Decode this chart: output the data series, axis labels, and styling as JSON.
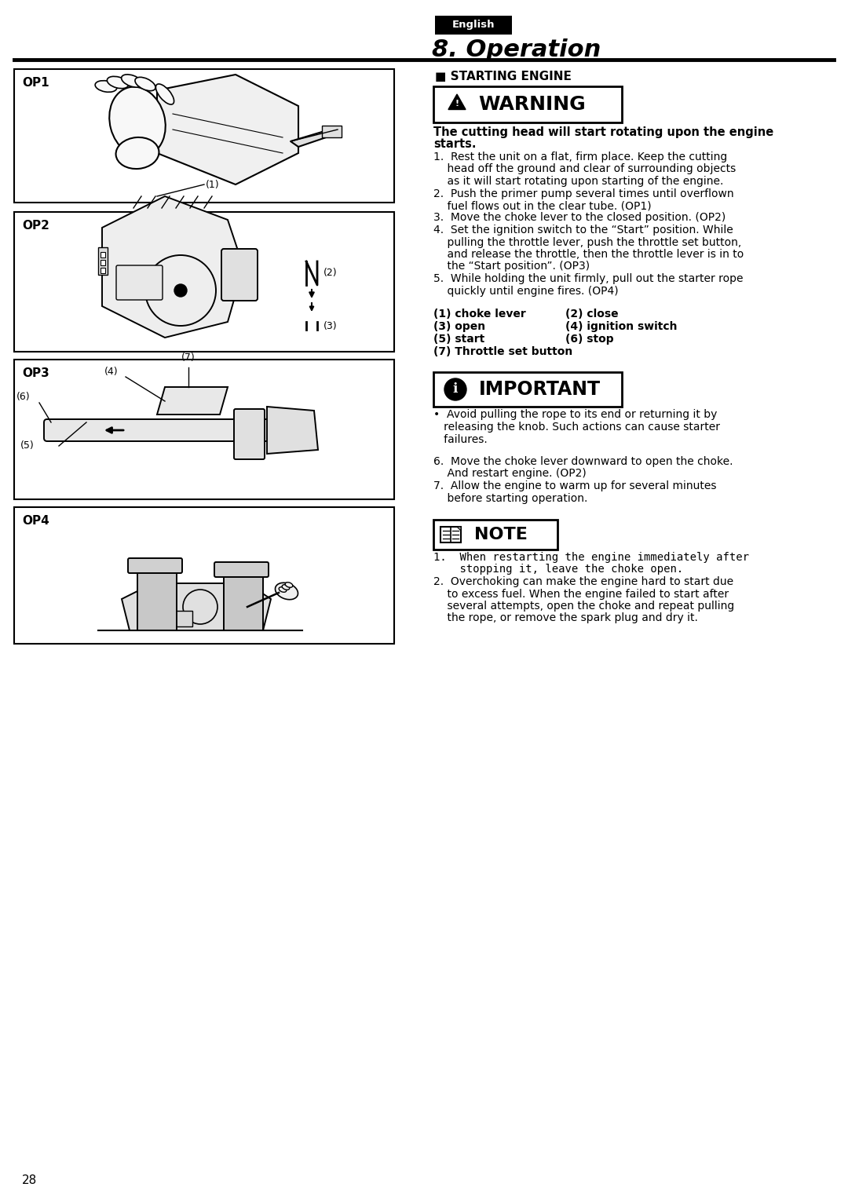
{
  "bg_color": "#ffffff",
  "page_number": "28",
  "english_label": "English",
  "section_title": "8. Operation",
  "section_label": "STARTING ENGINE",
  "warning_text": "WARNING",
  "important_text": "IMPORTANT",
  "note_text": "NOTE",
  "op_labels": [
    "OP1",
    "OP2",
    "OP3",
    "OP4"
  ],
  "warning_body_line1": "The cutting head will start rotating upon the engine",
  "warning_body_line2": "starts.",
  "legend_col1": [
    "(1) choke lever",
    "(3) open",
    "(5) start",
    "(7) Throttle set button"
  ],
  "legend_col2": [
    "(2) close",
    "(4) ignition switch",
    "(6) stop",
    ""
  ],
  "step1a": "1.  Rest the unit on a flat, firm place. Keep the cutting",
  "step1b": "    head off the ground and clear of surrounding objects",
  "step1c": "    as it will start rotating upon starting of the engine.",
  "step2a": "2.  Push the primer pump several times until overflown",
  "step2b": "    fuel flows out in the clear tube. (OP1)",
  "step3": "3.  Move the choke lever to the closed position. (OP2)",
  "step4a": "4.  Set the ignition switch to the “Start” position. While",
  "step4b": "    pulling the throttle lever, push the throttle set button,",
  "step4c": "    and release the throttle, then the throttle lever is in to",
  "step4d": "    the “Start position”. (OP3)",
  "step5a": "5.  While holding the unit firmly, pull out the starter rope",
  "step5b": "    quickly until engine fires. (OP4)",
  "important_bullet": "•  Avoid pulling the rope to its end or returning it by",
  "important_line2": "   releasing the knob. Such actions can cause starter",
  "important_line3": "   failures.",
  "step6a": "6.  Move the choke lever downward to open the choke.",
  "step6b": "    And restart engine. (OP2)",
  "step7a": "7.  Allow the engine to warm up for several minutes",
  "step7b": "    before starting operation.",
  "note_line1": "1.  When restarting the engine immediately after",
  "note_line2": "    stopping it, leave the choke open.",
  "note_line3": "2.  Overchoking can make the engine hard to start due",
  "note_line4": "    to excess fuel. When the engine failed to start after",
  "note_line5": "    several attempts, open the choke and repeat pulling",
  "note_line6": "    the rope, or remove the spark plug and dry it."
}
